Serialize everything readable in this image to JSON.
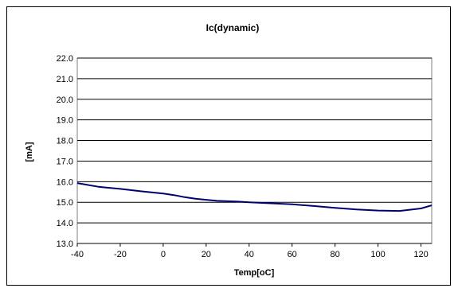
{
  "chart_data": {
    "type": "line",
    "title": "Ic(dynamic)",
    "xlabel": "Temp[oC]",
    "ylabel": "[mA]",
    "xlim": [
      -40,
      125
    ],
    "ylim": [
      13.0,
      22.0
    ],
    "x_ticks": [
      -40,
      -20,
      0,
      20,
      40,
      60,
      80,
      100,
      120
    ],
    "y_ticks": [
      "13.0",
      "14.0",
      "15.0",
      "16.0",
      "17.0",
      "18.0",
      "19.0",
      "20.0",
      "21.0",
      "22.0"
    ],
    "grid": "horizontal",
    "legend": "none",
    "series": [
      {
        "x": [
          -40,
          -30,
          -20,
          -10,
          0,
          5,
          10,
          15,
          20,
          25,
          30,
          35,
          40,
          50,
          60,
          70,
          80,
          90,
          100,
          110,
          120,
          125
        ],
        "y": [
          15.93,
          15.75,
          15.65,
          15.53,
          15.42,
          15.35,
          15.25,
          15.17,
          15.12,
          15.07,
          15.05,
          15.03,
          15.0,
          14.95,
          14.9,
          14.82,
          14.73,
          14.65,
          14.6,
          14.58,
          14.7,
          14.85
        ]
      }
    ],
    "colors": {
      "line": "#00006E",
      "plot_bg": "#FFFFFF",
      "gridline": "#000000"
    }
  }
}
